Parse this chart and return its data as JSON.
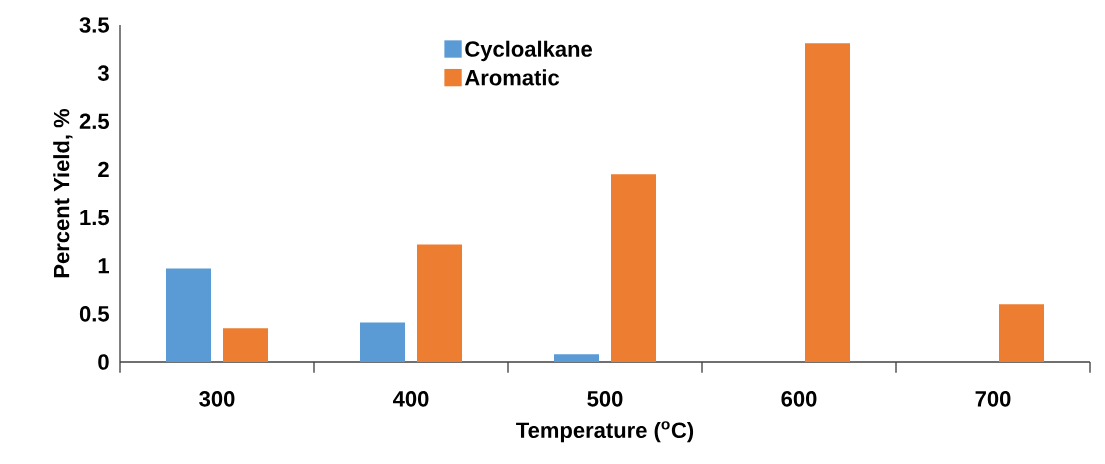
{
  "chart_data": {
    "type": "bar",
    "xlabel": "Temperature ($^{o}$C)",
    "ylabel": "Percent Yield, %",
    "categories": [
      "300",
      "400",
      "500",
      "600",
      "700"
    ],
    "series": [
      {
        "name": "Cycloalkane",
        "color": "#5b9bd5",
        "values": [
          0.97,
          0.41,
          0.08,
          0,
          0
        ]
      },
      {
        "name": "Aromatic",
        "color": "#ed7d31",
        "values": [
          0.35,
          1.22,
          1.95,
          3.31,
          0.6
        ]
      }
    ],
    "ylim": [
      0,
      3.5
    ],
    "yticks": [
      0,
      0.5,
      1,
      1.5,
      2,
      2.5,
      3,
      3.5
    ],
    "grid": false,
    "legend": "top"
  }
}
